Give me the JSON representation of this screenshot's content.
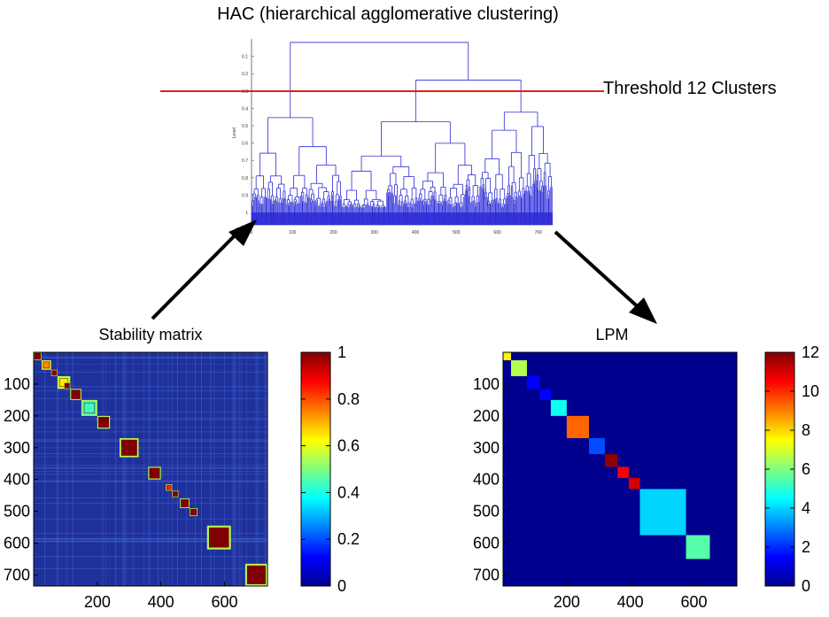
{
  "title": "HAC (hierarchical agglomerative clustering)",
  "threshold_label": "Threshold 12 Clusters",
  "colors": {
    "background_matrix": "#1f2f8f",
    "dendrogram": "#2a2ad6",
    "threshold_line": "#e02020",
    "arrow": "#000000"
  },
  "chart_data": [
    {
      "type": "dendrogram",
      "name": "hac",
      "ylabel": "Level",
      "x_ticks": [
        0,
        100,
        200,
        300,
        400,
        500,
        600,
        700
      ],
      "y_ticks": [
        0.1,
        0.2,
        0.3,
        0.4,
        0.5,
        0.6,
        0.7,
        0.8,
        0.9,
        1
      ],
      "xlim": [
        0,
        735
      ],
      "ylim": [
        0,
        1
      ],
      "threshold_level": 0.35,
      "clusters_at_threshold": 12
    },
    {
      "type": "heatmap",
      "name": "stability-matrix",
      "title": "Stability matrix",
      "n": 735,
      "x_ticks": [
        200,
        400,
        600
      ],
      "y_ticks": [
        100,
        200,
        300,
        400,
        500,
        600,
        700
      ],
      "colorbar": {
        "min": 0,
        "max": 1,
        "ticks": [
          0,
          0.2,
          0.4,
          0.6,
          0.8,
          1
        ]
      },
      "blocks": [
        {
          "start": 0,
          "end": 25,
          "value": 1.0
        },
        {
          "start": 25,
          "end": 55,
          "value": 0.7
        },
        {
          "start": 55,
          "end": 75,
          "value": 0.95
        },
        {
          "start": 75,
          "end": 115,
          "value": 0.6
        },
        {
          "start": 95,
          "end": 115,
          "value": 1.0
        },
        {
          "start": 115,
          "end": 150,
          "value": 1.0
        },
        {
          "start": 150,
          "end": 200,
          "value": 0.4
        },
        {
          "start": 200,
          "end": 240,
          "value": 1.0
        },
        {
          "start": 270,
          "end": 330,
          "value": 1.0
        },
        {
          "start": 360,
          "end": 400,
          "value": 1.0
        },
        {
          "start": 415,
          "end": 435,
          "value": 0.8
        },
        {
          "start": 435,
          "end": 455,
          "value": 0.95
        },
        {
          "start": 460,
          "end": 490,
          "value": 1.0
        },
        {
          "start": 490,
          "end": 515,
          "value": 1.0
        },
        {
          "start": 545,
          "end": 620,
          "value": 1.0
        },
        {
          "start": 665,
          "end": 735,
          "value": 1.0
        }
      ]
    },
    {
      "type": "heatmap",
      "name": "lpm",
      "title": "LPM",
      "n": 735,
      "x_ticks": [
        200,
        400,
        600
      ],
      "y_ticks": [
        100,
        200,
        300,
        400,
        500,
        600,
        700
      ],
      "colorbar": {
        "min": 0,
        "max": 12,
        "ticks": [
          0,
          2,
          4,
          6,
          8,
          10,
          12
        ]
      },
      "background_value": 0,
      "blocks": [
        {
          "start": 0,
          "end": 25,
          "value": 7.6
        },
        {
          "start": 25,
          "end": 75,
          "value": 6.6
        },
        {
          "start": 75,
          "end": 115,
          "value": 1.5
        },
        {
          "start": 115,
          "end": 150,
          "value": 1.5
        },
        {
          "start": 150,
          "end": 200,
          "value": 4.7
        },
        {
          "start": 200,
          "end": 270,
          "value": 9.3
        },
        {
          "start": 270,
          "end": 320,
          "value": 2.4
        },
        {
          "start": 320,
          "end": 360,
          "value": 11.8
        },
        {
          "start": 360,
          "end": 395,
          "value": 10.6
        },
        {
          "start": 395,
          "end": 430,
          "value": 11.0
        },
        {
          "start": 430,
          "end": 575,
          "value": 4.0
        },
        {
          "start": 575,
          "end": 650,
          "value": 5.5
        }
      ]
    }
  ]
}
